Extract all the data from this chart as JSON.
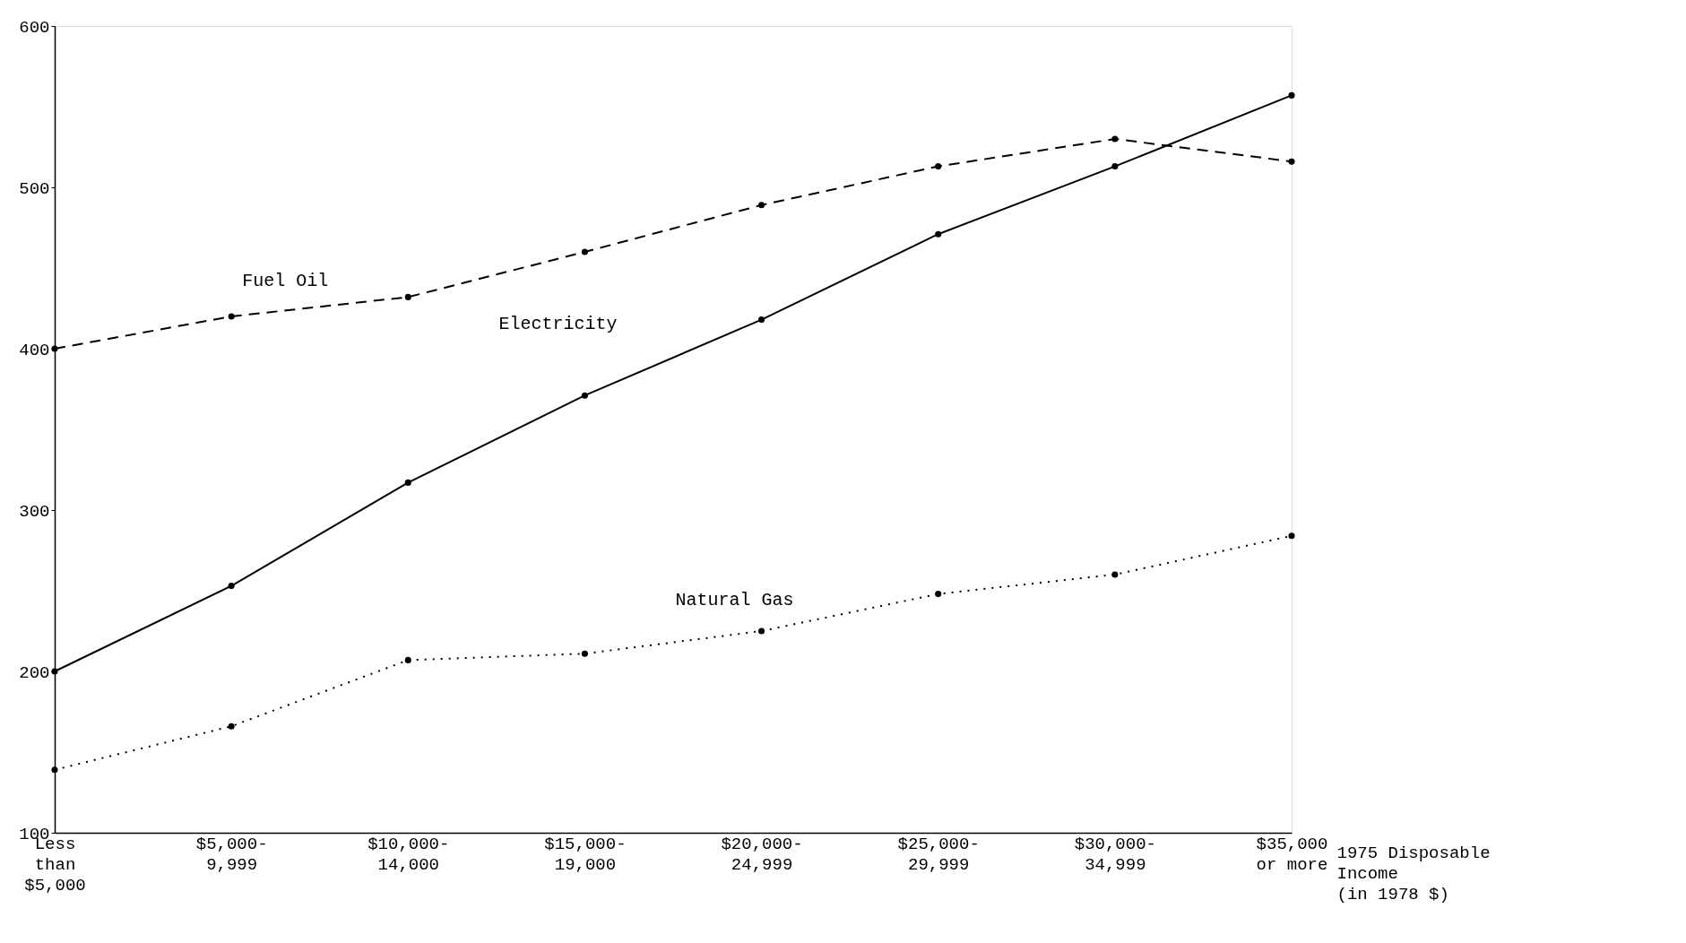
{
  "chart_data": {
    "type": "line",
    "categories": [
      "Less\nthan\n$5,000",
      "$5,000-\n9,999",
      "$10,000-\n14,000",
      "$15,000-\n19,000",
      "$20,000-\n24,999",
      "$25,000-\n29,999",
      "$30,000-\n34,999",
      "$35,000\nor more"
    ],
    "xlabel": "1975 Disposable\nIncome\n(in 1978 $)",
    "ylim": [
      100,
      600
    ],
    "yticks": [
      100,
      200,
      300,
      400,
      500,
      600
    ],
    "grid": false,
    "legend": false,
    "marker": "circle",
    "series": [
      {
        "name": "Fuel Oil",
        "color": "#000000",
        "line_style": "dashed",
        "values": [
          400,
          420,
          432,
          460,
          489,
          513,
          530,
          516
        ]
      },
      {
        "name": "Electricity",
        "color": "#000000",
        "line_style": "solid",
        "values": [
          200,
          253,
          317,
          371,
          418,
          471,
          513,
          557
        ]
      },
      {
        "name": "Natural Gas",
        "color": "#000000",
        "line_style": "dotted",
        "values": [
          139,
          166,
          207,
          211,
          225,
          248,
          260,
          284
        ]
      }
    ]
  }
}
